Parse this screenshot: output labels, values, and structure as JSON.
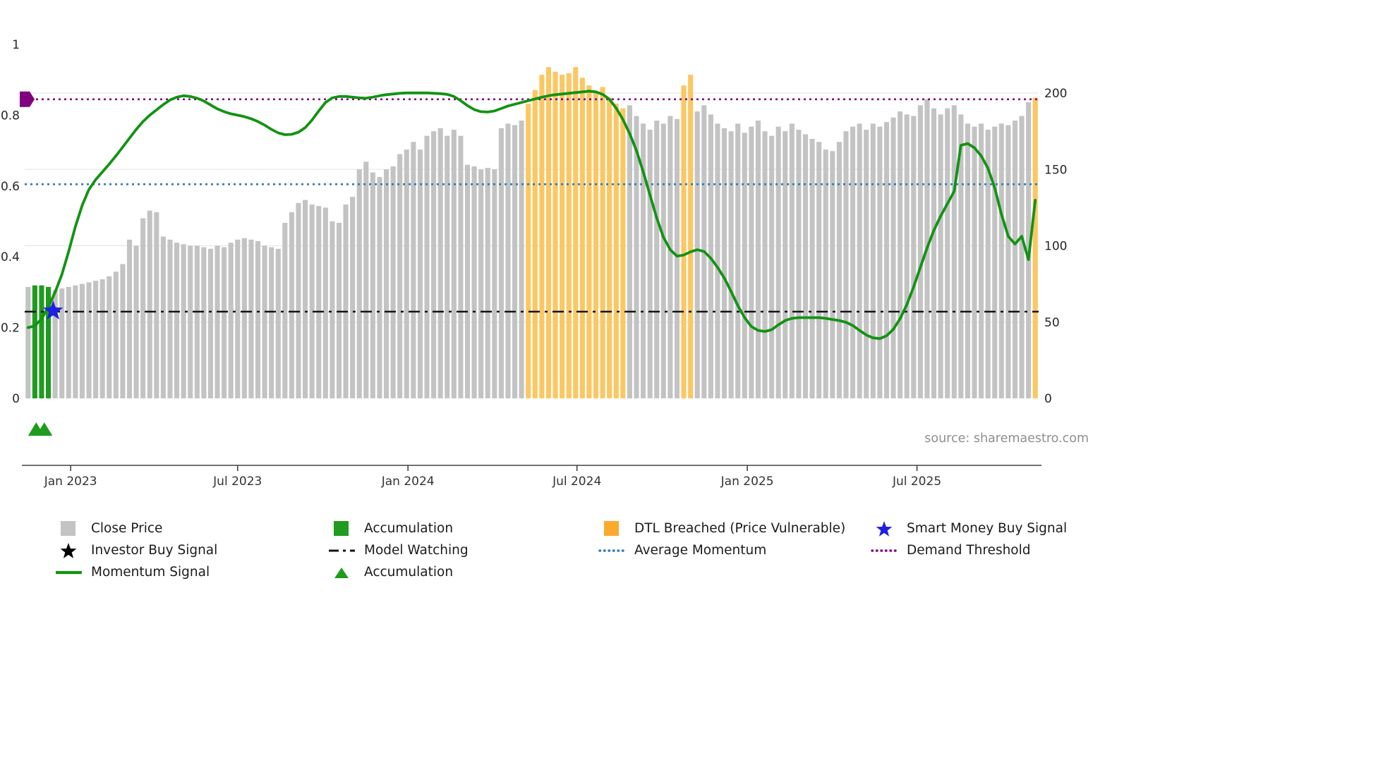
{
  "colors": {
    "bar_gray": "#c3c3c3",
    "bar_green": "#1f9b1f",
    "bar_orange": "#fcc762",
    "legend_orange": "#fbaa2c",
    "momentum_green": "#129312",
    "avg_momentum_blue": "#2e79b8",
    "demand_purple": "#800080",
    "model_watching_black": "#141414",
    "smart_money_blue": "#2020e0",
    "investor_black": "#000000",
    "grid": "#e7e7e7",
    "axis_text": "#262626",
    "muted_text": "#8f8f8f"
  },
  "source_text": "source: sharemaestro.com",
  "legend": {
    "items": [
      {
        "label": "Close Price",
        "icon": "gray-square"
      },
      {
        "label": "Accumulation",
        "icon": "green-square"
      },
      {
        "label": "DTL Breached (Price Vulnerable)",
        "icon": "orange-square"
      },
      {
        "label": "Smart Money Buy Signal",
        "icon": "blue-star"
      },
      {
        "label": "Investor Buy Signal",
        "icon": "black-star"
      },
      {
        "label": "Model Watching",
        "icon": "black-dashdot-line"
      },
      {
        "label": "Average Momentum",
        "icon": "blue-dotted-line"
      },
      {
        "label": "Demand Threshold",
        "icon": "purple-dotted-line"
      },
      {
        "label": "Momentum Signal",
        "icon": "green-line"
      },
      {
        "label": "Accumulation",
        "icon": "green-triangle"
      }
    ]
  },
  "chart_data": {
    "type": "bar+line",
    "title": "",
    "x_axis": {
      "ticks": [
        {
          "label": "Jan 2023",
          "pos": 6.3
        },
        {
          "label": "Jul 2023",
          "pos": 31.0
        },
        {
          "label": "Jan 2024",
          "pos": 56.2
        },
        {
          "label": "Jul 2024",
          "pos": 81.2
        },
        {
          "label": "Jan 2025",
          "pos": 106.4
        },
        {
          "label": "Jul 2025",
          "pos": 131.5
        }
      ]
    },
    "left_axis": {
      "ticks": [
        0,
        0.2,
        0.4,
        0.6,
        0.8,
        1
      ],
      "labels": [
        "0",
        "0.2",
        "0.4",
        "0.6",
        "0.8",
        "1"
      ],
      "range": [
        0,
        1
      ]
    },
    "right_axis": {
      "ticks": [
        0,
        50,
        100,
        150,
        200
      ],
      "labels": [
        "0",
        "50",
        "100",
        "150",
        "200"
      ],
      "grid_ticks": [
        50,
        100,
        150,
        200
      ],
      "range": [
        0,
        232
      ]
    },
    "thresholds": [
      {
        "name": "Demand Threshold",
        "value": 0.845,
        "style": "dotted",
        "color_key": "demand_purple"
      },
      {
        "name": "Average Momentum",
        "value": 0.605,
        "style": "dotted",
        "color_key": "avg_momentum_blue"
      },
      {
        "name": "Model Watching",
        "value": 0.245,
        "style": "dashdot",
        "color_key": "model_watching_black"
      }
    ],
    "series": {
      "close_price": {
        "type": "bar",
        "name": "Close Price",
        "values": [
          73,
          74,
          74,
          73,
          71,
          72,
          73,
          74,
          75,
          76,
          77,
          78,
          80,
          83,
          88,
          104,
          100,
          118,
          123,
          122,
          106,
          104,
          102,
          101,
          100,
          100,
          99,
          98,
          100,
          99,
          102,
          104,
          105,
          104,
          103,
          100,
          99,
          98,
          115,
          122,
          128,
          130,
          127,
          126,
          125,
          116,
          115,
          127,
          132,
          150,
          155,
          148,
          145,
          150,
          152,
          160,
          163,
          168,
          163,
          172,
          175,
          177,
          172,
          176,
          172,
          153,
          152,
          150,
          151,
          150,
          177,
          180,
          179,
          182,
          193,
          202,
          212,
          217,
          214,
          212,
          213,
          217,
          210,
          205,
          200,
          204,
          197,
          193,
          190,
          192,
          185,
          180,
          176,
          182,
          180,
          185,
          183,
          205,
          212,
          188,
          192,
          186,
          180,
          177,
          175,
          180,
          174,
          178,
          182,
          175,
          172,
          178,
          175,
          180,
          176,
          173,
          170,
          168,
          163,
          162,
          168,
          175,
          178,
          180,
          176,
          180,
          178,
          181,
          184,
          188,
          186,
          185,
          192,
          196,
          190,
          186,
          190,
          192,
          186,
          180,
          178,
          180,
          176,
          178,
          180,
          179,
          182,
          185,
          194,
          197
        ],
        "accumulation_indices": [
          1,
          2,
          3
        ],
        "dtl_breached_ranges": [
          [
            74,
            88
          ],
          [
            97,
            98
          ],
          [
            149,
            149
          ]
        ]
      },
      "momentum": {
        "type": "line",
        "name": "Momentum Signal",
        "values": [
          0.2,
          0.205,
          0.225,
          0.258,
          0.3,
          0.35,
          0.415,
          0.485,
          0.545,
          0.59,
          0.618,
          0.64,
          0.662,
          0.685,
          0.71,
          0.735,
          0.76,
          0.782,
          0.8,
          0.815,
          0.83,
          0.843,
          0.851,
          0.855,
          0.853,
          0.848,
          0.84,
          0.829,
          0.818,
          0.81,
          0.804,
          0.8,
          0.796,
          0.79,
          0.782,
          0.772,
          0.76,
          0.75,
          0.745,
          0.746,
          0.752,
          0.765,
          0.786,
          0.812,
          0.836,
          0.849,
          0.853,
          0.853,
          0.851,
          0.849,
          0.848,
          0.851,
          0.855,
          0.858,
          0.86,
          0.862,
          0.863,
          0.863,
          0.863,
          0.863,
          0.862,
          0.861,
          0.859,
          0.853,
          0.841,
          0.827,
          0.816,
          0.81,
          0.809,
          0.812,
          0.819,
          0.826,
          0.831,
          0.836,
          0.841,
          0.846,
          0.851,
          0.855,
          0.858,
          0.86,
          0.862,
          0.864,
          0.866,
          0.868,
          0.866,
          0.859,
          0.845,
          0.82,
          0.788,
          0.748,
          0.7,
          0.64,
          0.575,
          0.51,
          0.455,
          0.42,
          0.402,
          0.405,
          0.414,
          0.42,
          0.415,
          0.396,
          0.37,
          0.34,
          0.302,
          0.262,
          0.228,
          0.203,
          0.192,
          0.189,
          0.194,
          0.208,
          0.22,
          0.226,
          0.228,
          0.228,
          0.228,
          0.228,
          0.226,
          0.223,
          0.22,
          0.215,
          0.206,
          0.192,
          0.179,
          0.171,
          0.169,
          0.177,
          0.195,
          0.225,
          0.265,
          0.315,
          0.37,
          0.425,
          0.475,
          0.515,
          0.55,
          0.585,
          0.715,
          0.72,
          0.708,
          0.685,
          0.65,
          0.595,
          0.52,
          0.458,
          0.436,
          0.458,
          0.392,
          0.56
        ]
      }
    },
    "markers": {
      "smart_money_buy": {
        "x_index": 3.7,
        "value": 0.247
      },
      "demand_threshold_marker": {
        "value": 0.845
      },
      "accumulation_triangles": {
        "x_indices": [
          1.2,
          2.4
        ]
      }
    }
  }
}
